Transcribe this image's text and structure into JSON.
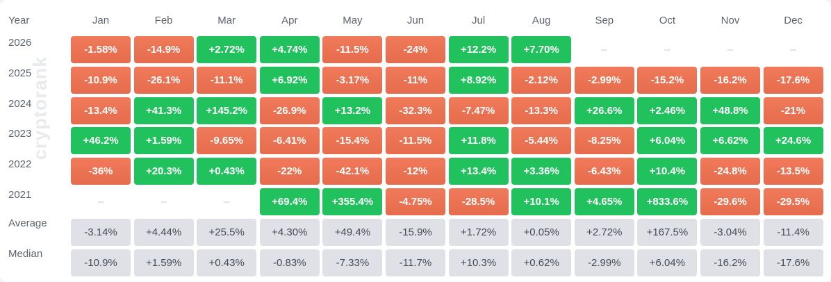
{
  "watermark": "cryptorank",
  "header": {
    "year_label": "Year",
    "months": [
      "Jan",
      "Feb",
      "Mar",
      "Apr",
      "May",
      "Jun",
      "Jul",
      "Aug",
      "Sep",
      "Oct",
      "Nov",
      "Dec"
    ]
  },
  "colors": {
    "positive": "#21c25e",
    "negative": "#e9704f",
    "stat": "#dfe1e6"
  },
  "rows": [
    {
      "label": "2026",
      "kind": "year",
      "values": [
        "-1.58%",
        "-14.9%",
        "+2.72%",
        "+4.74%",
        "-11.5%",
        "-24%",
        "+12.2%",
        "+7.70%",
        "–",
        "–",
        "–",
        "–"
      ]
    },
    {
      "label": "2025",
      "kind": "year",
      "values": [
        "-10.9%",
        "-26.1%",
        "-11.1%",
        "+6.92%",
        "-3.17%",
        "-11%",
        "+8.92%",
        "-2.12%",
        "-2.99%",
        "-15.2%",
        "-16.2%",
        "-17.6%"
      ]
    },
    {
      "label": "2024",
      "kind": "year",
      "values": [
        "-13.4%",
        "+41.3%",
        "+145.2%",
        "-26.9%",
        "+13.2%",
        "-32.3%",
        "-7.47%",
        "-13.3%",
        "+26.6%",
        "+2.46%",
        "+48.8%",
        "-21%"
      ]
    },
    {
      "label": "2023",
      "kind": "year",
      "values": [
        "+46.2%",
        "+1.59%",
        "-9.65%",
        "-6.41%",
        "-15.4%",
        "-11.5%",
        "+11.8%",
        "-5.44%",
        "-8.25%",
        "+6.04%",
        "+6.62%",
        "+24.6%"
      ]
    },
    {
      "label": "2022",
      "kind": "year",
      "values": [
        "-36%",
        "+20.3%",
        "+0.43%",
        "-22%",
        "-42.1%",
        "-12%",
        "+13.4%",
        "+3.36%",
        "-6.43%",
        "+10.4%",
        "-24.8%",
        "-13.5%"
      ]
    },
    {
      "label": "2021",
      "kind": "year",
      "values": [
        "–",
        "–",
        "–",
        "+69.4%",
        "+355.4%",
        "-4.75%",
        "-28.5%",
        "+10.1%",
        "+4.65%",
        "+833.6%",
        "-29.6%",
        "-29.5%"
      ]
    },
    {
      "label": "Average",
      "kind": "stat",
      "values": [
        "-3.14%",
        "+4.44%",
        "+25.5%",
        "+4.30%",
        "+49.4%",
        "-15.9%",
        "+1.72%",
        "+0.05%",
        "+2.72%",
        "+167.5%",
        "-3.04%",
        "-11.4%"
      ]
    },
    {
      "label": "Median",
      "kind": "stat",
      "values": [
        "-10.9%",
        "+1.59%",
        "+0.43%",
        "-0.83%",
        "-7.33%",
        "-11.7%",
        "+10.3%",
        "+0.62%",
        "-2.99%",
        "+6.04%",
        "-16.2%",
        "-17.6%"
      ]
    }
  ],
  "chart_data": {
    "type": "table",
    "columns": [
      "Year",
      "Jan",
      "Feb",
      "Mar",
      "Apr",
      "May",
      "Jun",
      "Jul",
      "Aug",
      "Sep",
      "Oct",
      "Nov",
      "Dec"
    ],
    "rows": [
      [
        "2026",
        "-1.58%",
        "-14.9%",
        "+2.72%",
        "+4.74%",
        "-11.5%",
        "-24%",
        "+12.2%",
        "+7.70%",
        "–",
        "–",
        "–",
        "–"
      ],
      [
        "2025",
        "-10.9%",
        "-26.1%",
        "-11.1%",
        "+6.92%",
        "-3.17%",
        "-11%",
        "+8.92%",
        "-2.12%",
        "-2.99%",
        "-15.2%",
        "-16.2%",
        "-17.6%"
      ],
      [
        "2024",
        "-13.4%",
        "+41.3%",
        "+145.2%",
        "-26.9%",
        "+13.2%",
        "-32.3%",
        "-7.47%",
        "-13.3%",
        "+26.6%",
        "+2.46%",
        "+48.8%",
        "-21%"
      ],
      [
        "2023",
        "+46.2%",
        "+1.59%",
        "-9.65%",
        "-6.41%",
        "-15.4%",
        "-11.5%",
        "+11.8%",
        "-5.44%",
        "-8.25%",
        "+6.04%",
        "+6.62%",
        "+24.6%"
      ],
      [
        "2022",
        "-36%",
        "+20.3%",
        "+0.43%",
        "-22%",
        "-42.1%",
        "-12%",
        "+13.4%",
        "+3.36%",
        "-6.43%",
        "+10.4%",
        "-24.8%",
        "-13.5%"
      ],
      [
        "2021",
        "–",
        "–",
        "–",
        "+69.4%",
        "+355.4%",
        "-4.75%",
        "-28.5%",
        "+10.1%",
        "+4.65%",
        "+833.6%",
        "-29.6%",
        "-29.5%"
      ],
      [
        "Average",
        "-3.14%",
        "+4.44%",
        "+25.5%",
        "+4.30%",
        "+49.4%",
        "-15.9%",
        "+1.72%",
        "+0.05%",
        "+2.72%",
        "+167.5%",
        "-3.04%",
        "-11.4%"
      ],
      [
        "Median",
        "-10.9%",
        "+1.59%",
        "+0.43%",
        "-0.83%",
        "-7.33%",
        "-11.7%",
        "+10.3%",
        "+0.62%",
        "-2.99%",
        "+6.04%",
        "-16.2%",
        "-17.6%"
      ]
    ]
  }
}
